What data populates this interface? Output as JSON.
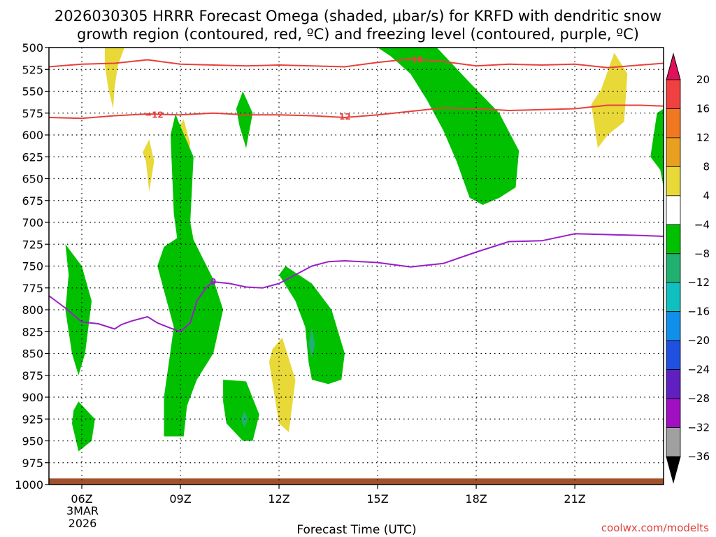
{
  "chart_data": {
    "type": "contour",
    "title_line1": "2026030305 HRRR Forecast Omega (shaded, μbar/s) for KRFD with dendritic snow",
    "title_line2": "growth region (contoured, red, ºC) and freezing level (contoured, purple, ºC)",
    "xlabel": "Forecast Time (UTC)",
    "credit": "coolwx.com/modelts",
    "date_label_day": "3MAR",
    "date_label_year": "2026",
    "x_range_hours": [
      5.0,
      23.7
    ],
    "y_range_mb": [
      500,
      1000
    ],
    "y_ticks": [
      500,
      525,
      550,
      575,
      600,
      625,
      650,
      675,
      700,
      725,
      750,
      775,
      800,
      825,
      850,
      875,
      900,
      925,
      950,
      975,
      1000
    ],
    "x_ticks": [
      {
        "hour": 6,
        "label": "06Z"
      },
      {
        "hour": 9,
        "label": "09Z"
      },
      {
        "hour": 12,
        "label": "12Z"
      },
      {
        "hour": 15,
        "label": "15Z"
      },
      {
        "hour": 18,
        "label": "18Z"
      },
      {
        "hour": 21,
        "label": "21Z"
      }
    ],
    "colorbar": {
      "labels": [
        "20",
        "16",
        "12",
        "8",
        "4",
        "−4",
        "−8",
        "−12",
        "−16",
        "−20",
        "−24",
        "−28",
        "−32",
        "−36"
      ],
      "colors": [
        "#e0105a",
        "#f04040",
        "#f07820",
        "#e8a020",
        "#e8d838",
        "#ffffff",
        "#00c000",
        "#20b070",
        "#10c0c0",
        "#1090e8",
        "#2050e0",
        "#6020c0",
        "#a010c0",
        "#a0a0a0",
        "#000000"
      ]
    },
    "contour_lines": [
      {
        "name": "-18",
        "color": "#e8403a",
        "points": [
          [
            5.0,
            522
          ],
          [
            6,
            519
          ],
          [
            7,
            518
          ],
          [
            8,
            514
          ],
          [
            9,
            519
          ],
          [
            10,
            520
          ],
          [
            11,
            521
          ],
          [
            12,
            520
          ],
          [
            13,
            521
          ],
          [
            14,
            522
          ],
          [
            15,
            517
          ],
          [
            16,
            513
          ],
          [
            17,
            516
          ],
          [
            18,
            521
          ],
          [
            19,
            519
          ],
          [
            20,
            520
          ],
          [
            21,
            519
          ],
          [
            22,
            523
          ],
          [
            23,
            520
          ],
          [
            23.7,
            518
          ]
        ]
      },
      {
        "name": "-12",
        "color": "#e8403a",
        "points": [
          [
            5.0,
            580
          ],
          [
            6,
            581
          ],
          [
            7,
            578
          ],
          [
            8,
            576
          ],
          [
            9,
            577
          ],
          [
            10,
            575
          ],
          [
            11,
            577
          ],
          [
            12,
            577
          ],
          [
            13,
            578
          ],
          [
            14,
            580
          ],
          [
            15,
            577
          ],
          [
            16,
            573
          ],
          [
            17,
            569
          ],
          [
            18,
            570
          ],
          [
            19,
            572
          ],
          [
            20,
            571
          ],
          [
            21,
            570
          ],
          [
            22,
            566
          ],
          [
            23,
            566
          ],
          [
            23.7,
            567
          ]
        ]
      },
      {
        "name": "0",
        "color": "#9a1fc8",
        "points": [
          [
            5.0,
            784
          ],
          [
            5.5,
            798
          ],
          [
            6,
            814
          ],
          [
            6.5,
            816
          ],
          [
            7,
            822
          ],
          [
            7.2,
            817
          ],
          [
            7.5,
            813
          ],
          [
            8,
            808
          ],
          [
            8.3,
            815
          ],
          [
            8.7,
            821
          ],
          [
            9,
            825
          ],
          [
            9.3,
            815
          ],
          [
            9.5,
            790
          ],
          [
            9.8,
            774
          ],
          [
            10,
            768
          ],
          [
            10.5,
            770
          ],
          [
            11,
            774
          ],
          [
            11.5,
            775
          ],
          [
            12,
            770
          ],
          [
            12.5,
            760
          ],
          [
            13,
            750
          ],
          [
            13.5,
            745
          ],
          [
            14,
            744
          ],
          [
            15,
            746
          ],
          [
            16,
            751
          ],
          [
            17,
            747
          ],
          [
            18,
            734
          ],
          [
            19,
            722
          ],
          [
            20,
            721
          ],
          [
            21,
            713
          ],
          [
            22,
            714
          ],
          [
            23,
            715
          ],
          [
            23.7,
            716
          ]
        ]
      }
    ],
    "contour_labels": [
      {
        "text": "−18",
        "x": 16.1,
        "y": 514,
        "color": "red"
      },
      {
        "text": "−12",
        "x": 8.2,
        "y": 577,
        "color": "red"
      },
      {
        "text": "−12",
        "x": 13.9,
        "y": 579,
        "color": "red"
      },
      {
        "text": "0",
        "x": 10.0,
        "y": 768,
        "color": "purple"
      }
    ],
    "shaded_regions": [
      {
        "level": "4 to 8",
        "color": "#e8d838",
        "points": [
          [
            6.7,
            500
          ],
          [
            7.3,
            500
          ],
          [
            7.1,
            520
          ],
          [
            7.0,
            545
          ],
          [
            6.95,
            570
          ],
          [
            6.8,
            545
          ],
          [
            6.7,
            520
          ]
        ]
      },
      {
        "level": "4 to 8",
        "color": "#e8d838",
        "points": [
          [
            8.05,
            605
          ],
          [
            8.2,
            630
          ],
          [
            8.05,
            665
          ],
          [
            7.95,
            630
          ],
          [
            7.85,
            620
          ]
        ]
      },
      {
        "level": "4 to 8",
        "color": "#e8d838",
        "points": [
          [
            9.1,
            582
          ],
          [
            9.3,
            610
          ],
          [
            9.0,
            665
          ],
          [
            8.8,
            640
          ],
          [
            8.8,
            600
          ]
        ]
      },
      {
        "level": "4 to 8",
        "color": "#e8d838",
        "points": [
          [
            12.1,
            832
          ],
          [
            12.5,
            880
          ],
          [
            12.3,
            940
          ],
          [
            12.0,
            930
          ],
          [
            11.7,
            860
          ],
          [
            11.8,
            845
          ]
        ]
      },
      {
        "level": "4 to 8",
        "color": "#e8d838",
        "points": [
          [
            22.2,
            506
          ],
          [
            22.6,
            530
          ],
          [
            22.5,
            585
          ],
          [
            22.0,
            600
          ],
          [
            21.7,
            615
          ],
          [
            21.5,
            565
          ],
          [
            21.8,
            548
          ]
        ]
      },
      {
        "level": "-4 to -8",
        "color": "#00c000",
        "points": [
          [
            15.0,
            500
          ],
          [
            16.8,
            500
          ],
          [
            17.8,
            540
          ],
          [
            18.7,
            575
          ],
          [
            19.3,
            618
          ],
          [
            19.2,
            660
          ],
          [
            18.7,
            672
          ],
          [
            18.2,
            680
          ],
          [
            17.8,
            672
          ],
          [
            17.4,
            630
          ],
          [
            17.0,
            595
          ],
          [
            16.5,
            560
          ],
          [
            16.0,
            530
          ],
          [
            15.4,
            510
          ]
        ]
      },
      {
        "level": "-4 to -8",
        "color": "#00c000",
        "points": [
          [
            23.5,
            575
          ],
          [
            23.7,
            570
          ],
          [
            23.7,
            660
          ],
          [
            23.6,
            640
          ],
          [
            23.3,
            625
          ]
        ]
      },
      {
        "level": "-4 to -8",
        "color": "#00c000",
        "points": [
          [
            10.9,
            550
          ],
          [
            11.2,
            575
          ],
          [
            11.0,
            615
          ],
          [
            10.8,
            590
          ],
          [
            10.7,
            570
          ]
        ]
      },
      {
        "level": "-4 to -8",
        "color": "#00c000",
        "points": [
          [
            8.85,
            576
          ],
          [
            9.0,
            590
          ],
          [
            9.4,
            625
          ],
          [
            9.3,
            700
          ],
          [
            9.4,
            720
          ],
          [
            10.0,
            765
          ],
          [
            10.3,
            800
          ],
          [
            10.0,
            850
          ],
          [
            9.5,
            880
          ],
          [
            9.2,
            910
          ],
          [
            9.1,
            945
          ],
          [
            8.5,
            945
          ],
          [
            8.5,
            900
          ],
          [
            8.8,
            820
          ],
          [
            8.3,
            750
          ],
          [
            8.5,
            728
          ],
          [
            8.9,
            718
          ],
          [
            8.8,
            690
          ],
          [
            8.7,
            600
          ]
        ]
      },
      {
        "level": "-4 to -8",
        "color": "#00c000",
        "points": [
          [
            12.2,
            750
          ],
          [
            12.6,
            760
          ],
          [
            13.0,
            770
          ],
          [
            13.6,
            800
          ],
          [
            14.0,
            850
          ],
          [
            13.9,
            880
          ],
          [
            13.5,
            885
          ],
          [
            13.0,
            880
          ],
          [
            12.9,
            860
          ],
          [
            12.8,
            820
          ],
          [
            12.5,
            790
          ],
          [
            12.0,
            760
          ]
        ]
      },
      {
        "level": "-4 to -8",
        "color": "#00c000",
        "points": [
          [
            10.3,
            880
          ],
          [
            11.0,
            882
          ],
          [
            11.4,
            920
          ],
          [
            11.2,
            950
          ],
          [
            10.9,
            950
          ],
          [
            10.4,
            930
          ],
          [
            10.3,
            905
          ]
        ]
      },
      {
        "level": "-4 to -8",
        "color": "#00c000",
        "points": [
          [
            5.5,
            725
          ],
          [
            6.0,
            750
          ],
          [
            6.3,
            790
          ],
          [
            6.1,
            850
          ],
          [
            5.9,
            875
          ],
          [
            5.7,
            850
          ],
          [
            5.5,
            800
          ],
          [
            5.6,
            760
          ]
        ]
      },
      {
        "level": "-4 to -8",
        "color": "#00c000",
        "points": [
          [
            5.9,
            905
          ],
          [
            6.4,
            925
          ],
          [
            6.3,
            950
          ],
          [
            5.9,
            962
          ],
          [
            5.7,
            930
          ],
          [
            5.75,
            915
          ]
        ]
      },
      {
        "level": "-8 to -12",
        "color": "#20b070",
        "points": [
          [
            13.0,
            820
          ],
          [
            13.1,
            840
          ],
          [
            13.0,
            855
          ],
          [
            12.9,
            840
          ]
        ]
      },
      {
        "level": "-8 to -12",
        "color": "#20b070",
        "points": [
          [
            10.95,
            915
          ],
          [
            11.05,
            925
          ],
          [
            10.95,
            935
          ],
          [
            10.85,
            925
          ]
        ]
      }
    ],
    "surface_band": {
      "color": "#a0522d",
      "top_mb": 993
    },
    "grid": "dotted"
  }
}
